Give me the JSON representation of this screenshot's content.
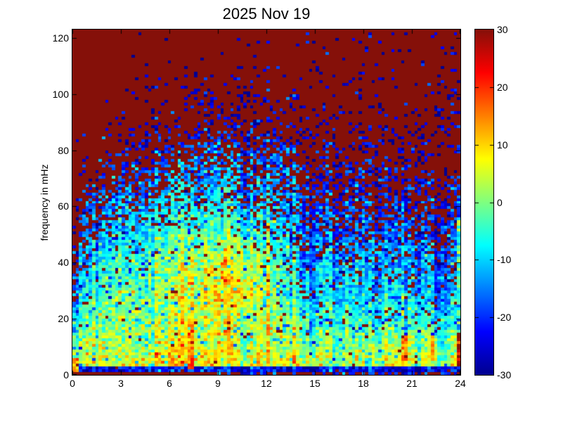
{
  "figure": {
    "background": "#FFFFFF"
  },
  "chart_data": {
    "type": "heatmap",
    "title": "2025 Nov 19",
    "xlabel": "",
    "ylabel": "frequency in mHz",
    "x_range": [
      0,
      24
    ],
    "y_range": [
      0,
      123
    ],
    "x_ticks": [
      0,
      3,
      6,
      9,
      12,
      15,
      18,
      21,
      24
    ],
    "x_tick_labels": [
      "0",
      "3",
      "6",
      "9",
      "12",
      "15",
      "18",
      "21",
      "24"
    ],
    "y_ticks": [
      0,
      20,
      40,
      60,
      80,
      100,
      120
    ],
    "y_tick_labels": [
      "0",
      "20",
      "40",
      "60",
      "80",
      "100",
      "120"
    ],
    "colorbar": {
      "range": [
        -30,
        30
      ],
      "ticks": [
        -30,
        -20,
        -10,
        0,
        10,
        20,
        30
      ],
      "tick_labels": [
        "-30",
        "-20",
        "-10",
        "0",
        "10",
        "20",
        "30"
      ],
      "inner_ticks": [
        -20,
        -10,
        0,
        10,
        20
      ]
    },
    "colormap": {
      "name": "jet",
      "stops": [
        {
          "pos": 0.0,
          "color": "#00008F"
        },
        {
          "pos": 0.125,
          "color": "#0000FF"
        },
        {
          "pos": 0.375,
          "color": "#00FFFF"
        },
        {
          "pos": 0.625,
          "color": "#FFFF00"
        },
        {
          "pos": 0.875,
          "color": "#FF0000"
        },
        {
          "pos": 1.0,
          "color": "#851009"
        }
      ]
    },
    "grid": {
      "cols": 118,
      "rows": 123
    },
    "hour_nodes": [
      0,
      1,
      2,
      3,
      4,
      5,
      6,
      7,
      8,
      9,
      10,
      11,
      12,
      13,
      14,
      15,
      16,
      17,
      18,
      19,
      20,
      21,
      22,
      23,
      24
    ],
    "freq_nodes": [
      0,
      10,
      20,
      30,
      40,
      50,
      60,
      70,
      80,
      90,
      100,
      110,
      120
    ],
    "base_grid": [
      [
        6,
        8,
        8,
        8,
        8,
        8,
        9,
        12,
        10,
        10,
        9,
        9,
        9,
        8,
        8,
        7,
        6,
        6,
        6,
        6,
        10,
        7,
        6,
        7,
        10
      ],
      [
        2,
        3,
        4,
        4,
        3,
        3,
        5,
        8,
        6,
        6,
        6,
        5,
        5,
        2,
        1,
        1,
        0,
        0,
        0,
        -1,
        4,
        1,
        0,
        0,
        2
      ],
      [
        -8,
        0,
        2,
        2,
        1,
        1,
        3,
        5,
        4,
        4,
        5,
        4,
        2,
        -2,
        -4,
        -5,
        -6,
        -6,
        -7,
        -8,
        -2,
        -6,
        -8,
        -8,
        -8
      ],
      [
        -14,
        -4,
        -2,
        -1,
        -2,
        -2,
        2,
        6,
        6,
        8,
        8,
        6,
        2,
        -4,
        -8,
        -9,
        -10,
        -10,
        -10,
        -11,
        -8,
        -11,
        -12,
        -12,
        -12
      ],
      [
        -18,
        -8,
        -5,
        -4,
        -5,
        -4,
        0,
        2,
        3,
        5,
        5,
        3,
        -1,
        -7,
        -11,
        -12,
        -13,
        -13,
        -13,
        -14,
        -12,
        -14,
        -15,
        -15,
        -15
      ],
      [
        -21,
        -12,
        -9,
        -8,
        -9,
        -8,
        -5,
        -4,
        -3,
        -2,
        -2,
        -4,
        -6,
        -10,
        -14,
        -15,
        -16,
        -16,
        -16,
        -17,
        -15,
        -17,
        -18,
        -18,
        -18
      ],
      [
        -24,
        -16,
        -13,
        -12,
        -12,
        -12,
        -10,
        -9,
        -8,
        -8,
        -8,
        -9,
        -11,
        -14,
        -17,
        -18,
        -19,
        -19,
        -19,
        -20,
        -18,
        -20,
        -21,
        -21,
        -21
      ],
      [
        -25,
        -20,
        -17,
        -16,
        -16,
        -16,
        -14,
        -13,
        -13,
        -13,
        -13,
        -14,
        -15,
        -17,
        -19,
        -20,
        -21,
        -21,
        -21,
        -22,
        -21,
        -22,
        -23,
        -23,
        -23
      ],
      [
        -26,
        -23,
        -21,
        -20,
        -20,
        -20,
        -18,
        -17,
        -17,
        -17,
        -17,
        -17,
        -18,
        -20,
        -21,
        -22,
        -23,
        -23,
        -23,
        -23,
        -23,
        -24,
        -24,
        -24,
        -24
      ],
      [
        -25,
        -25,
        -25,
        -25,
        -25,
        -25,
        -25,
        -25,
        -25,
        -25,
        -25,
        -25,
        -25,
        -25,
        -25,
        -25,
        -25,
        -25,
        -25,
        -25,
        -25,
        -25,
        -25,
        -25,
        -25
      ],
      [
        -26,
        -26,
        -26,
        -26,
        -26,
        -26,
        -26,
        -26,
        -26,
        -26,
        -26,
        -26,
        -26,
        -26,
        -26,
        -26,
        -26,
        -26,
        -26,
        -26,
        -26,
        -26,
        -26,
        -26,
        -26
      ],
      [
        -26,
        -26,
        -26,
        -26,
        -26,
        -26,
        -26,
        -26,
        -26,
        -26,
        -26,
        -26,
        -26,
        -26,
        -26,
        -26,
        -26,
        -26,
        -26,
        -26,
        -26,
        -26,
        -26,
        -26,
        -26
      ],
      [
        -26,
        -26,
        -26,
        -26,
        -26,
        -26,
        -26,
        -26,
        -26,
        -26,
        -26,
        -26,
        -26,
        -26,
        -26,
        -26,
        -26,
        -26,
        -26,
        -26,
        -26,
        -26,
        -26,
        -26,
        -26
      ]
    ],
    "q_high_grid": [
      [
        0,
        0,
        0,
        0,
        0,
        0,
        0,
        0,
        0,
        0,
        0,
        0,
        0,
        0,
        0,
        0,
        0,
        0,
        0,
        0,
        0,
        0,
        0,
        0,
        0
      ],
      [
        0.01,
        0.01,
        0.01,
        0.01,
        0.01,
        0.01,
        0.01,
        0.01,
        0.01,
        0.01,
        0.01,
        0.01,
        0.01,
        0.01,
        0.01,
        0.01,
        0.01,
        0.01,
        0.01,
        0.01,
        0.01,
        0.01,
        0.01,
        0.01,
        0.01
      ],
      [
        0.1,
        0.02,
        0.02,
        0.02,
        0.02,
        0.02,
        0.02,
        0.02,
        0.02,
        0.02,
        0.02,
        0.02,
        0.03,
        0.04,
        0.05,
        0.05,
        0.05,
        0.05,
        0.05,
        0.06,
        0.05,
        0.06,
        0.07,
        0.07,
        0.07
      ],
      [
        0.25,
        0.04,
        0.03,
        0.03,
        0.03,
        0.03,
        0.03,
        0.03,
        0.03,
        0.03,
        0.03,
        0.03,
        0.04,
        0.06,
        0.08,
        0.08,
        0.09,
        0.09,
        0.09,
        0.1,
        0.08,
        0.1,
        0.11,
        0.11,
        0.11
      ],
      [
        0.55,
        0.1,
        0.05,
        0.05,
        0.05,
        0.05,
        0.04,
        0.04,
        0.04,
        0.04,
        0.04,
        0.05,
        0.06,
        0.1,
        0.13,
        0.14,
        0.15,
        0.15,
        0.15,
        0.16,
        0.13,
        0.16,
        0.17,
        0.17,
        0.17
      ],
      [
        0.85,
        0.35,
        0.15,
        0.1,
        0.1,
        0.09,
        0.08,
        0.07,
        0.07,
        0.07,
        0.07,
        0.08,
        0.1,
        0.16,
        0.22,
        0.24,
        0.26,
        0.26,
        0.26,
        0.28,
        0.24,
        0.28,
        0.3,
        0.3,
        0.3
      ],
      [
        0.95,
        0.6,
        0.38,
        0.3,
        0.28,
        0.25,
        0.2,
        0.17,
        0.16,
        0.16,
        0.16,
        0.18,
        0.22,
        0.3,
        0.38,
        0.42,
        0.45,
        0.45,
        0.45,
        0.48,
        0.42,
        0.48,
        0.5,
        0.5,
        0.5
      ],
      [
        0.99,
        0.82,
        0.65,
        0.55,
        0.5,
        0.45,
        0.38,
        0.33,
        0.3,
        0.3,
        0.3,
        0.32,
        0.36,
        0.46,
        0.55,
        0.6,
        0.62,
        0.62,
        0.62,
        0.65,
        0.6,
        0.65,
        0.66,
        0.66,
        0.66
      ],
      [
        1,
        0.95,
        0.88,
        0.8,
        0.72,
        0.66,
        0.58,
        0.52,
        0.48,
        0.46,
        0.46,
        0.48,
        0.52,
        0.62,
        0.7,
        0.74,
        0.76,
        0.76,
        0.76,
        0.78,
        0.75,
        0.78,
        0.78,
        0.78,
        0.78
      ],
      [
        1,
        1,
        0.97,
        0.94,
        0.9,
        0.86,
        0.8,
        0.74,
        0.7,
        0.68,
        0.68,
        0.7,
        0.72,
        0.78,
        0.83,
        0.85,
        0.86,
        0.86,
        0.86,
        0.87,
        0.85,
        0.87,
        0.87,
        0.87,
        0.87
      ],
      [
        1,
        1,
        1,
        0.98,
        0.96,
        0.94,
        0.9,
        0.86,
        0.84,
        0.82,
        0.82,
        0.83,
        0.85,
        0.88,
        0.9,
        0.9,
        0.9,
        0.9,
        0.9,
        0.9,
        0.9,
        0.9,
        0.9,
        0.9,
        0.9
      ],
      [
        1,
        1,
        1,
        1,
        0.98,
        0.97,
        0.95,
        0.93,
        0.92,
        0.9,
        0.9,
        0.9,
        0.91,
        0.92,
        0.93,
        0.93,
        0.93,
        0.93,
        0.92,
        0.92,
        0.92,
        0.93,
        0.93,
        0.93,
        0.93
      ],
      [
        1,
        1,
        1,
        1,
        0.99,
        0.98,
        0.97,
        0.96,
        0.95,
        0.94,
        0.94,
        0.94,
        0.94,
        0.95,
        0.95,
        0.95,
        0.95,
        0.95,
        0.94,
        0.94,
        0.94,
        0.95,
        0.95,
        0.95,
        0.95
      ]
    ],
    "anomalies": [
      {
        "x": [
          20.32,
          20.55
        ],
        "f": [
          30,
          62
        ],
        "base": -7,
        "q": 0.02
      },
      {
        "x": [
          20.32,
          20.55
        ],
        "f": [
          14,
          30
        ],
        "base": 4,
        "q": 0
      },
      {
        "x": [
          20.25,
          20.7
        ],
        "f": [
          3,
          14
        ],
        "base": 16,
        "q": 0.05
      },
      {
        "x": [
          23.75,
          24
        ],
        "f": [
          0,
          15
        ],
        "base": 24,
        "q": 0.35
      },
      {
        "x": [
          23.8,
          24
        ],
        "f": [
          15,
          55
        ],
        "base": -6,
        "q": 0.02
      },
      {
        "x": [
          0,
          8.8
        ],
        "f": [
          0,
          1.3
        ],
        "base": 30,
        "q": 1
      },
      {
        "x": [
          8.8,
          24
        ],
        "f": [
          0,
          1.3
        ],
        "base": -20,
        "q": 0.5
      },
      {
        "x": [
          0,
          24
        ],
        "f": [
          1.3,
          2.8
        ],
        "base": -23,
        "q": 0.02
      },
      {
        "x": [
          7.15,
          7.5
        ],
        "f": [
          2,
          17
        ],
        "base": 13,
        "q": 0
      },
      {
        "x": [
          0,
          0.35
        ],
        "f": [
          1.5,
          6
        ],
        "base": 18,
        "q": 0.1
      },
      {
        "x": [
          9.25,
          9.5
        ],
        "f": [
          25,
          42
        ],
        "base": 11,
        "q": 0
      },
      {
        "x": [
          10.3,
          10.6
        ],
        "f": [
          25,
          45
        ],
        "base": 12,
        "q": 0
      },
      {
        "x": [
          22.2,
          22.5
        ],
        "f": [
          4,
          13
        ],
        "base": 10,
        "q": 0
      }
    ],
    "noise": {
      "seed": 20251119,
      "cell_sd": 4.5,
      "column_sd": 3,
      "low_speckle_prob": 0.05,
      "low_speckle_drop": 16
    }
  }
}
